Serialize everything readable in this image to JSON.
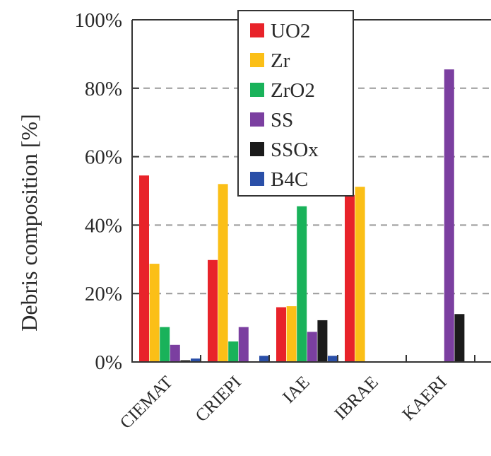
{
  "chart_data": {
    "type": "bar",
    "title": "",
    "xlabel": "",
    "ylabel": "Debris composition [%]",
    "ylim": [
      0,
      100
    ],
    "yticks": [
      "0%",
      "20%",
      "40%",
      "60%",
      "80%",
      "100%"
    ],
    "ytick_values": [
      0,
      20,
      40,
      60,
      80,
      100
    ],
    "grid": true,
    "legend_position": "top-center",
    "categories": [
      "CIEMAT",
      "CRIEPI",
      "IAE",
      "IBRAE",
      "KAERI"
    ],
    "series": [
      {
        "name": "UO2",
        "color": "#e8232a",
        "values": [
          54.5,
          29.8,
          16.0,
          48.8,
          0
        ]
      },
      {
        "name": "Zr",
        "color": "#fbbf17",
        "values": [
          28.7,
          52.0,
          16.3,
          51.2,
          0
        ]
      },
      {
        "name": "ZrO2",
        "color": "#19b25a",
        "values": [
          10.2,
          6.0,
          45.5,
          0,
          0
        ]
      },
      {
        "name": "SS",
        "color": "#7b3fa0",
        "values": [
          5.0,
          10.2,
          8.8,
          0,
          85.5
        ]
      },
      {
        "name": "SSOx",
        "color": "#1b1b1b",
        "values": [
          0.5,
          0,
          12.2,
          0,
          14.0
        ]
      },
      {
        "name": "B4C",
        "color": "#2a4fa8",
        "values": [
          1.0,
          1.8,
          1.8,
          0,
          0
        ]
      }
    ]
  }
}
